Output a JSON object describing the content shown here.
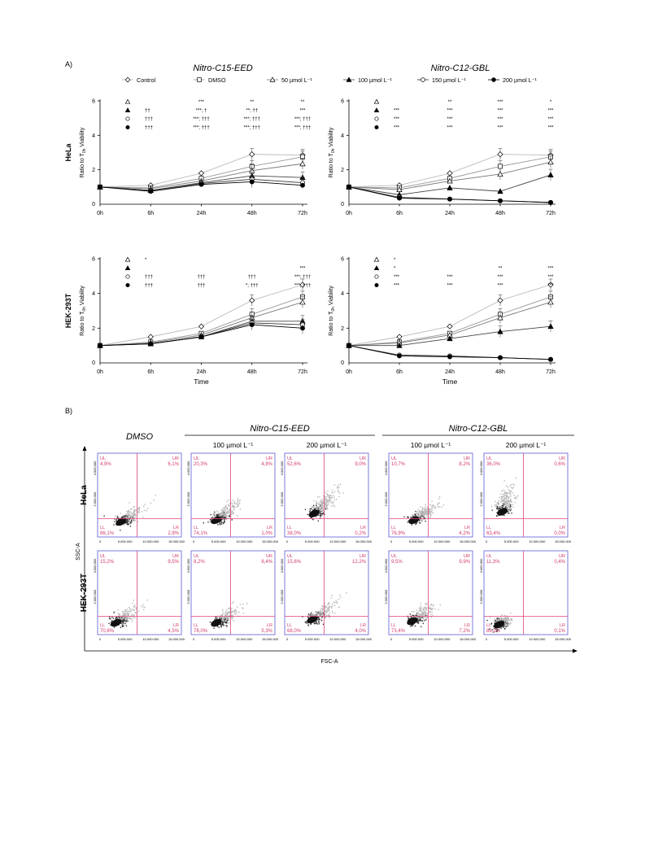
{
  "panel_labels": {
    "a": "A)",
    "b": "B)"
  },
  "compounds": [
    "Nitro-C15-EED",
    "Nitro-C12-GBL"
  ],
  "legend": [
    "Control",
    "DMSO",
    "50 µmol L⁻¹",
    "100 µmol L⁻¹",
    "150 µmol L⁻¹",
    "200 µmol L⁻¹"
  ],
  "row_labels": [
    "HeLa",
    "HEK-293T"
  ],
  "ylabel": "Ratio to T0h Viability",
  "xlabel": "Time",
  "time_points": [
    "0h",
    "6h",
    "24h",
    "48h",
    "72h"
  ],
  "yticks": [
    "2",
    "4",
    "6"
  ],
  "sig_rows": {
    "HeLa_C15": [
      [
        "",
        "",
        "***",
        "**",
        "**"
      ],
      [
        "††",
        "",
        "***; †",
        "**; ††",
        "***"
      ],
      [
        "†††",
        "",
        "***; †††",
        "***; †††",
        "***; †††"
      ],
      [
        "†††",
        "",
        "***; †††",
        "***; †††",
        "***; †††"
      ]
    ],
    "HeLa_C12": [
      [
        "",
        "",
        "**",
        "***",
        "*"
      ],
      [
        "***",
        "",
        "***",
        "***",
        "***"
      ],
      [
        "***",
        "",
        "***",
        "***",
        "***"
      ],
      [
        "***",
        "",
        "***",
        "***",
        "***"
      ]
    ],
    "HEK_C15": [
      [
        "*",
        "",
        "",
        "",
        ""
      ],
      [
        "",
        "",
        "",
        "",
        "***"
      ],
      [
        "†††",
        "",
        "†††",
        "†††",
        "***; †††"
      ],
      [
        "†††",
        "",
        "†††",
        "*; †††",
        "***; †††"
      ]
    ],
    "HEK_C12": [
      [
        "*",
        "",
        "",
        "",
        ""
      ],
      [
        "*",
        "",
        "",
        "**",
        "***"
      ],
      [
        "***",
        "",
        "***",
        "***",
        "***"
      ],
      [
        "***",
        "",
        "***",
        "***",
        "***"
      ]
    ]
  },
  "chart_data": [
    {
      "type": "line",
      "title": "Nitro-C15-EED",
      "row": "HeLa",
      "ylabel": "Ratio to T0h Viability",
      "categories": [
        "0h",
        "6h",
        "24h",
        "48h",
        "72h"
      ],
      "ylim": [
        0,
        6
      ],
      "series": [
        {
          "name": "Control",
          "values": [
            1,
            1.1,
            1.8,
            2.9,
            2.85
          ]
        },
        {
          "name": "DMSO",
          "values": [
            1,
            0.95,
            1.5,
            2.2,
            2.75
          ]
        },
        {
          "name": "50 µmol L⁻¹",
          "values": [
            1,
            0.9,
            1.35,
            1.95,
            2.35
          ]
        },
        {
          "name": "100 µmol L⁻¹",
          "values": [
            1,
            0.8,
            1.25,
            1.65,
            1.55
          ]
        },
        {
          "name": "150 µmol L⁻¹",
          "values": [
            1,
            0.8,
            1.2,
            1.45,
            1.25
          ]
        },
        {
          "name": "200 µmol L⁻¹",
          "values": [
            1,
            0.75,
            1.15,
            1.3,
            1.1
          ]
        }
      ]
    },
    {
      "type": "line",
      "title": "Nitro-C12-GBL",
      "row": "HeLa",
      "ylabel": "Ratio to T0h Viability",
      "categories": [
        "0h",
        "6h",
        "24h",
        "48h",
        "72h"
      ],
      "ylim": [
        0,
        6
      ],
      "series": [
        {
          "name": "Control",
          "values": [
            1,
            1.1,
            1.8,
            2.9,
            2.85
          ]
        },
        {
          "name": "DMSO",
          "values": [
            1,
            0.95,
            1.5,
            2.2,
            2.75
          ]
        },
        {
          "name": "50 µmol L⁻¹",
          "values": [
            1,
            0.85,
            1.35,
            1.75,
            2.45
          ]
        },
        {
          "name": "100 µmol L⁻¹",
          "values": [
            1,
            0.55,
            0.95,
            0.75,
            1.7
          ]
        },
        {
          "name": "150 µmol L⁻¹",
          "values": [
            1,
            0.4,
            0.3,
            0.2,
            0.1
          ]
        },
        {
          "name": "200 µmol L⁻¹",
          "values": [
            1,
            0.35,
            0.3,
            0.2,
            0.1
          ]
        }
      ]
    },
    {
      "type": "line",
      "title": "Nitro-C15-EED",
      "row": "HEK-293T",
      "ylabel": "Ratio to T0h Viability",
      "xlabel": "Time",
      "categories": [
        "0h",
        "6h",
        "24h",
        "48h",
        "72h"
      ],
      "ylim": [
        0,
        6
      ],
      "series": [
        {
          "name": "Control",
          "values": [
            1,
            1.5,
            2.1,
            3.6,
            4.5
          ]
        },
        {
          "name": "DMSO",
          "values": [
            1,
            1.2,
            1.7,
            2.8,
            3.8
          ]
        },
        {
          "name": "50 µmol L⁻¹",
          "values": [
            1,
            1.15,
            1.6,
            2.6,
            3.5
          ]
        },
        {
          "name": "100 µmol L⁻¹",
          "values": [
            1,
            1.1,
            1.5,
            2.4,
            2.4
          ]
        },
        {
          "name": "150 µmol L⁻¹",
          "values": [
            1,
            1.1,
            1.5,
            2.3,
            2.2
          ]
        },
        {
          "name": "200 µmol L⁻¹",
          "values": [
            1,
            1.1,
            1.5,
            2.2,
            2.0
          ]
        }
      ]
    },
    {
      "type": "line",
      "title": "Nitro-C12-GBL",
      "row": "HEK-293T",
      "ylabel": "Ratio to T0h Viability",
      "xlabel": "Time",
      "categories": [
        "0h",
        "6h",
        "24h",
        "48h",
        "72h"
      ],
      "ylim": [
        0,
        6
      ],
      "series": [
        {
          "name": "Control",
          "values": [
            1,
            1.5,
            2.1,
            3.6,
            4.5
          ]
        },
        {
          "name": "DMSO",
          "values": [
            1,
            1.2,
            1.7,
            2.8,
            3.8
          ]
        },
        {
          "name": "50 µmol L⁻¹",
          "values": [
            1,
            1.15,
            1.6,
            2.6,
            3.5
          ]
        },
        {
          "name": "100 µmol L⁻¹",
          "values": [
            1,
            1.0,
            1.4,
            1.8,
            2.1
          ]
        },
        {
          "name": "150 µmol L⁻¹",
          "values": [
            1,
            0.45,
            0.4,
            0.3,
            0.2
          ]
        },
        {
          "name": "200 µmol L⁻¹",
          "values": [
            1,
            0.4,
            0.35,
            0.3,
            0.2
          ]
        }
      ]
    }
  ],
  "flow": {
    "column_headers": [
      "DMSO",
      "100 µmol L⁻¹",
      "200 µmol L⁻¹",
      "100 µmol L⁻¹",
      "200 µmol L⁻¹"
    ],
    "group_headers": [
      "Nitro-C15-EED",
      "Nitro-C12-GBL"
    ],
    "x_axis": "FSC-A",
    "y_axis": "SSC-A",
    "x_ticks": [
      "0",
      "5.000.000",
      "10.000.000",
      "15.000.000"
    ],
    "y_ticks": [
      "2.000.000",
      "4.000.000"
    ],
    "quadrant_labels": [
      "UL",
      "UR",
      "LL",
      "LR"
    ],
    "plots": [
      [
        {
          "UL": "4,9%",
          "UR": "6,1%",
          "LL": "86,1%",
          "LR": "2,9%"
        },
        {
          "UL": "20,3%",
          "UR": "4,8%",
          "LL": "74,1%",
          "LR": "1,0%"
        },
        {
          "UL": "52,6%",
          "UR": "9,0%",
          "LL": "38,0%",
          "LR": "0,2%"
        },
        {
          "UL": "10,7%",
          "UR": "8,2%",
          "LL": "76,9%",
          "LR": "4,2%"
        },
        {
          "UL": "36,0%",
          "UR": "0,6%",
          "LL": "63,4%",
          "LR": "0,0%"
        }
      ],
      [
        {
          "UL": "15,2%",
          "UR": "9,5%",
          "LL": "70,8%",
          "LR": "4,5%"
        },
        {
          "UL": "8,2%",
          "UR": "8,4%",
          "LL": "78,0%",
          "LR": "5,3%"
        },
        {
          "UL": "15,6%",
          "UR": "12,2%",
          "LL": "68,0%",
          "LR": "4,0%"
        },
        {
          "UL": "9,5%",
          "UR": "9,9%",
          "LL": "73,4%",
          "LR": "7,2%"
        },
        {
          "UL": "11,3%",
          "UR": "0,4%",
          "LL": "88,2%",
          "LR": "0,1%"
        }
      ]
    ]
  },
  "colors": {
    "quadrant": "#e0457b",
    "frame": "#5a5ad6",
    "quad_text": "#d23b6c"
  }
}
